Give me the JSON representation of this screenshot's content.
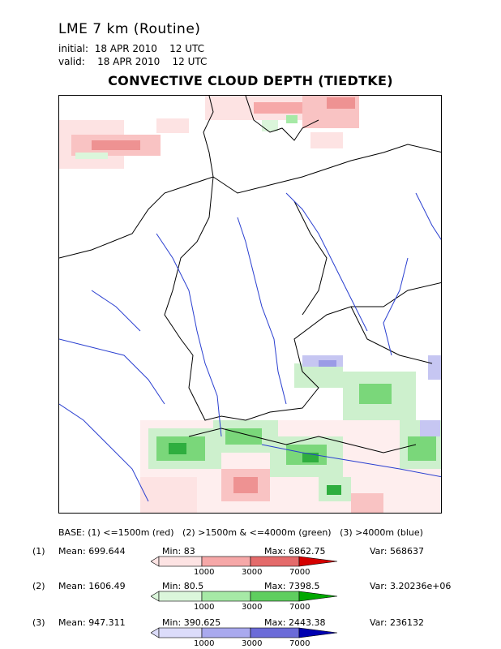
{
  "header": {
    "model": "LME 7 km (Routine)",
    "initial_label": "initial:",
    "initial_value": "18 APR 2010    12 UTC",
    "valid_label": "valid:",
    "valid_value": "18 APR 2010    12 UTC",
    "title": "CONVECTIVE CLOUD DEPTH (TIEDTKE)"
  },
  "legend": {
    "base_text": "BASE: (1) <=1500m (red)   (2) >1500m & <=4000m (green)   (3) >4000m (blue)",
    "ticks": [
      "1000",
      "3000",
      "7000"
    ],
    "rows": [
      {
        "index": "(1)",
        "mean_label": "Mean:",
        "mean": "699.644",
        "min_label": "Min:",
        "min": "83",
        "max_label": "Max:",
        "max": "6862.75",
        "var_label": "Var:",
        "var": "568637",
        "colors": [
          "#fde3e3",
          "#f6a8a8",
          "#e46b6b",
          "#d50000"
        ]
      },
      {
        "index": "(2)",
        "mean_label": "Mean:",
        "mean": "1606.49",
        "min_label": "Min:",
        "min": "80.5",
        "max_label": "Max:",
        "max": "7398.5",
        "var_label": "Var:",
        "var": "3.20236e+06",
        "colors": [
          "#dbf6db",
          "#a6e9a6",
          "#5fce5f",
          "#00a800"
        ]
      },
      {
        "index": "(3)",
        "mean_label": "Mean:",
        "mean": "947.311",
        "min_label": "Min:",
        "min": "390.625",
        "max_label": "Max:",
        "max": "2443.38",
        "var_label": "Var:",
        "var": "236132",
        "colors": [
          "#dcdcfa",
          "#a9a9ee",
          "#6b6bd8",
          "#0000b0"
        ]
      }
    ]
  },
  "map": {
    "region": "Germany / Central Europe",
    "colors": {
      "coast": "#000000",
      "river": "#2a3fd0",
      "red_light": "#f9c3c3",
      "red_mid": "#ee9292",
      "green_light": "#cdf0cd",
      "green_mid": "#7ad77a",
      "green_dark": "#2fae3f",
      "blue_light": "#c6c6f2",
      "blue_mid": "#9b9be6"
    }
  }
}
